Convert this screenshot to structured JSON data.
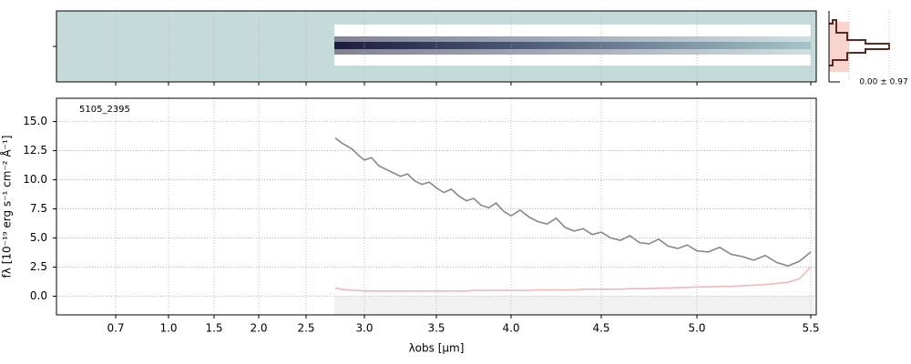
{
  "chart_data": {
    "type": "line",
    "annotation": "5105_2395",
    "xlabel": "λobs [μm]",
    "ylabel": "fλ [10⁻¹⁹ erg s⁻¹ cm⁻² Å⁻¹]",
    "hist_label": "0.00 ± 0.97",
    "xlim": [
      0.37,
      5.52
    ],
    "xticks": [
      0.7,
      {
        "value": 1,
        "label": "1.0"
      },
      1.5,
      {
        "value": 2,
        "label": "2.0"
      },
      2.5,
      {
        "value": 3,
        "label": "3.0"
      },
      3.5,
      {
        "value": 4,
        "label": "4.0"
      },
      4.5,
      {
        "value": 5,
        "label": "5.0"
      },
      5.5
    ],
    "ylim": [
      -1.6,
      17.0
    ],
    "yticks": [
      {
        "value": 0,
        "label": "0.0"
      },
      2.5,
      {
        "value": 5,
        "label": "5.0"
      },
      7.5,
      {
        "value": 10,
        "label": "10.0"
      },
      12.5,
      {
        "value": 15,
        "label": "15.0"
      }
    ],
    "grid": true,
    "x": [
      2.75,
      2.8,
      2.85,
      2.9,
      2.95,
      3.0,
      3.05,
      3.1,
      3.15,
      3.2,
      3.25,
      3.3,
      3.35,
      3.4,
      3.45,
      3.5,
      3.55,
      3.6,
      3.65,
      3.7,
      3.75,
      3.8,
      3.85,
      3.9,
      3.95,
      4.0,
      4.05,
      4.1,
      4.15,
      4.2,
      4.25,
      4.3,
      4.35,
      4.4,
      4.45,
      4.5,
      4.55,
      4.6,
      4.65,
      4.7,
      4.75,
      4.8,
      4.85,
      4.9,
      4.95,
      5.0,
      5.05,
      5.1,
      5.15,
      5.2,
      5.25,
      5.3,
      5.35,
      5.4,
      5.45,
      5.5
    ],
    "series": [
      {
        "color": "#888888",
        "values": [
          13.6,
          13.2,
          12.9,
          12.6,
          12.1,
          11.7,
          11.9,
          11.2,
          10.9,
          10.6,
          10.3,
          10.5,
          9.9,
          9.6,
          9.8,
          9.3,
          8.9,
          9.2,
          8.6,
          8.2,
          8.4,
          7.8,
          7.6,
          8.0,
          7.3,
          6.9,
          7.4,
          6.8,
          6.4,
          6.2,
          6.7,
          5.9,
          5.6,
          5.8,
          5.3,
          5.5,
          5.0,
          4.8,
          5.2,
          4.6,
          4.5,
          4.9,
          4.3,
          4.1,
          4.4,
          3.9,
          3.8,
          4.2,
          3.6,
          3.4,
          3.1,
          3.5,
          2.9,
          2.6,
          3.0,
          3.8
        ]
      },
      {
        "color": "#f4b6b6",
        "values": [
          0.7,
          0.6,
          0.55,
          0.5,
          0.5,
          0.45,
          0.45,
          0.45,
          0.45,
          0.45,
          0.45,
          0.45,
          0.45,
          0.45,
          0.45,
          0.45,
          0.45,
          0.45,
          0.45,
          0.45,
          0.5,
          0.5,
          0.5,
          0.5,
          0.5,
          0.5,
          0.5,
          0.5,
          0.55,
          0.55,
          0.55,
          0.55,
          0.55,
          0.6,
          0.6,
          0.6,
          0.6,
          0.6,
          0.65,
          0.65,
          0.65,
          0.7,
          0.7,
          0.75,
          0.75,
          0.8,
          0.8,
          0.85,
          0.85,
          0.9,
          0.95,
          1.0,
          1.1,
          1.2,
          1.5,
          2.5
        ]
      }
    ]
  }
}
